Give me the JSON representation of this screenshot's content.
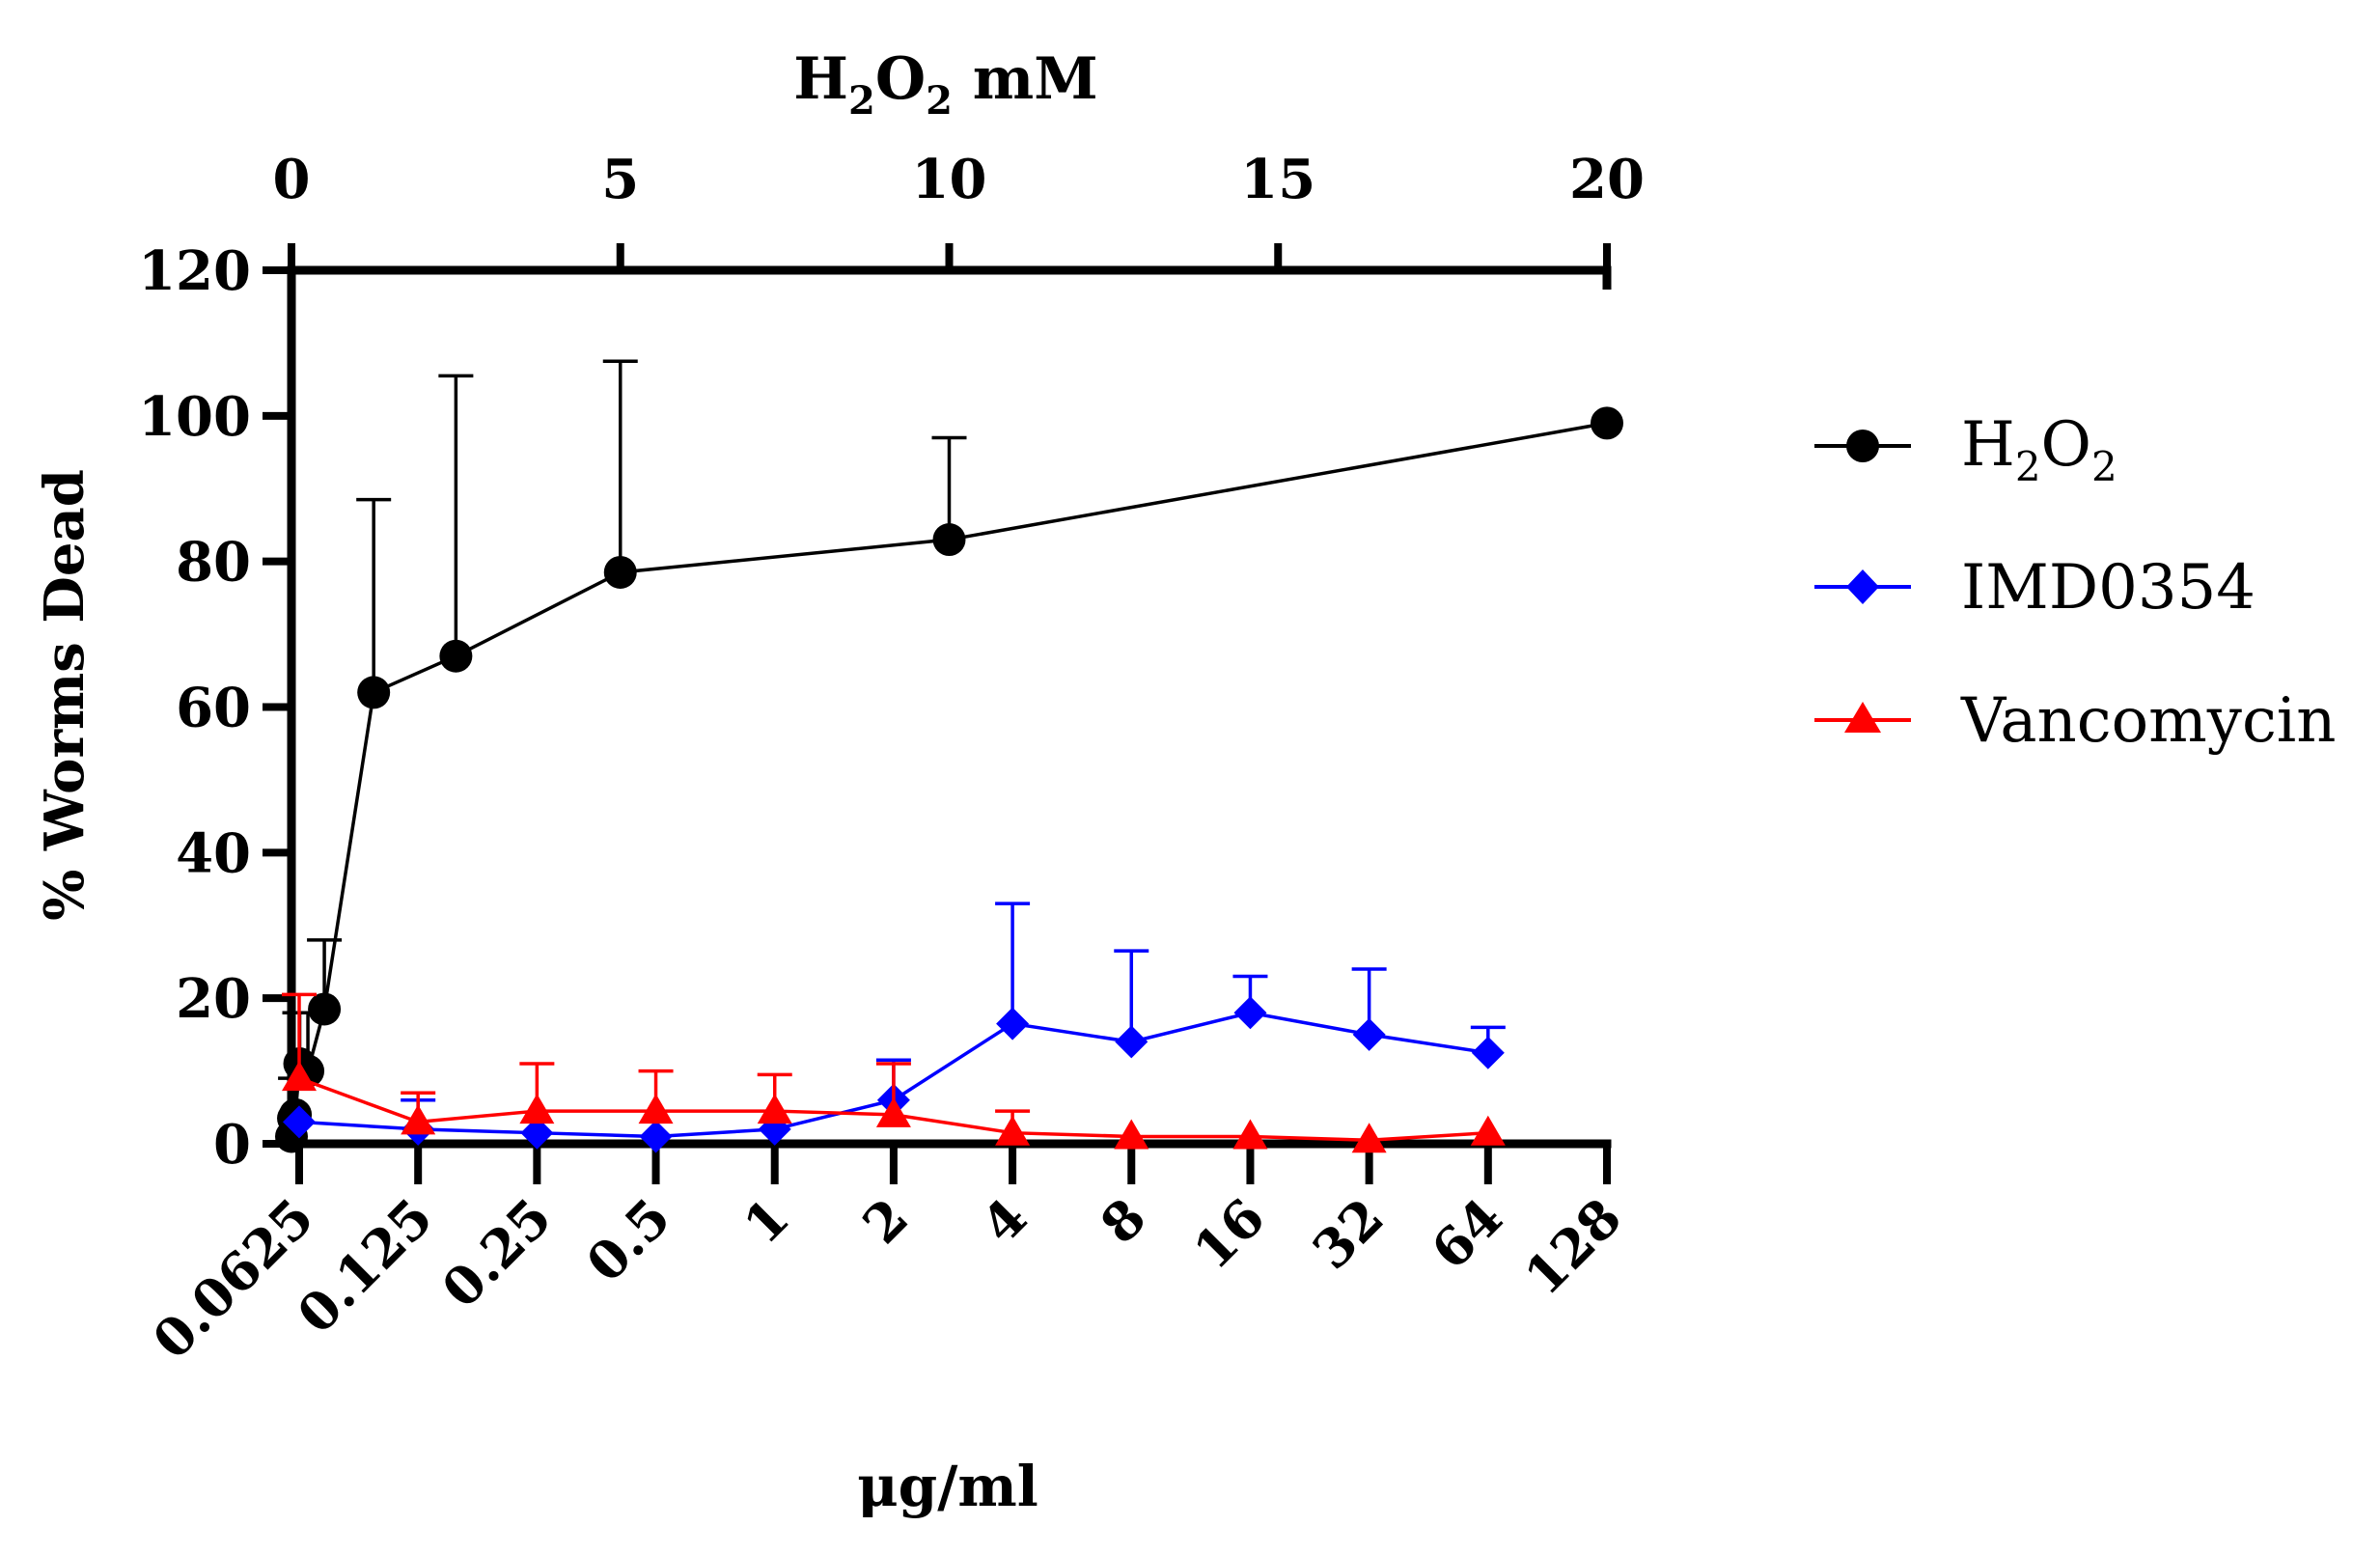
{
  "chart_data": {
    "type": "line",
    "ylabel": "% Worms Dead",
    "ylim": [
      0,
      120
    ],
    "yticks": [
      0,
      20,
      40,
      60,
      80,
      100,
      120
    ],
    "top_axis": {
      "label_main": "H",
      "label_sub1": "2",
      "label_mid": "O",
      "label_sub2": "2",
      "label_unit": " mM",
      "range": [
        0,
        20
      ],
      "ticks": [
        "0",
        "5",
        "10",
        "15",
        "20"
      ]
    },
    "bottom_axis": {
      "label": "μg/ml",
      "categories": [
        "0.0625",
        "0.125",
        "0.25",
        "0.5",
        "1",
        "2",
        "4",
        "8",
        "16",
        "32",
        "64",
        "128"
      ]
    },
    "legend": {
      "position": "right"
    },
    "series": [
      {
        "name": "H₂O₂",
        "name_main": "H",
        "name_sub1": "2",
        "name_mid": "O",
        "name_sub2": "2",
        "axis": "top",
        "color": "#000000",
        "marker": "circle",
        "x": [
          0,
          0.03,
          0.06,
          0.125,
          0.25,
          0.5,
          1.25,
          2.5,
          5,
          10,
          20
        ],
        "y": [
          1,
          3.5,
          4,
          11,
          10,
          18.5,
          62,
          67,
          78.5,
          83,
          99
        ],
        "error": [
          0,
          0,
          5,
          7,
          8,
          9.5,
          26.5,
          38.5,
          29,
          14,
          0
        ]
      },
      {
        "name": "IMD0354",
        "axis": "bottom",
        "color": "#0000ff",
        "marker": "diamond",
        "x": [
          "0.0625",
          "0.125",
          "0.25",
          "0.5",
          "1",
          "2",
          "4",
          "8",
          "16",
          "32",
          "64"
        ],
        "y": [
          3,
          2,
          1.5,
          1,
          2,
          6,
          16.5,
          14,
          18,
          15,
          12.5
        ],
        "error": [
          0,
          4,
          0,
          0,
          0,
          5.5,
          16.5,
          12.5,
          5,
          9,
          3.5
        ]
      },
      {
        "name": "Vancomycin",
        "axis": "bottom",
        "color": "#ff0000",
        "marker": "triangle",
        "x": [
          "0.0625",
          "0.125",
          "0.25",
          "0.5",
          "1",
          "2",
          "4",
          "8",
          "16",
          "32",
          "64"
        ],
        "y": [
          9,
          3,
          4.5,
          4.5,
          4.5,
          4,
          1.5,
          1,
          1,
          0.5,
          1.5
        ],
        "error": [
          11.5,
          4,
          6.5,
          5.5,
          5,
          7,
          3,
          0,
          0,
          0,
          0
        ]
      }
    ]
  }
}
